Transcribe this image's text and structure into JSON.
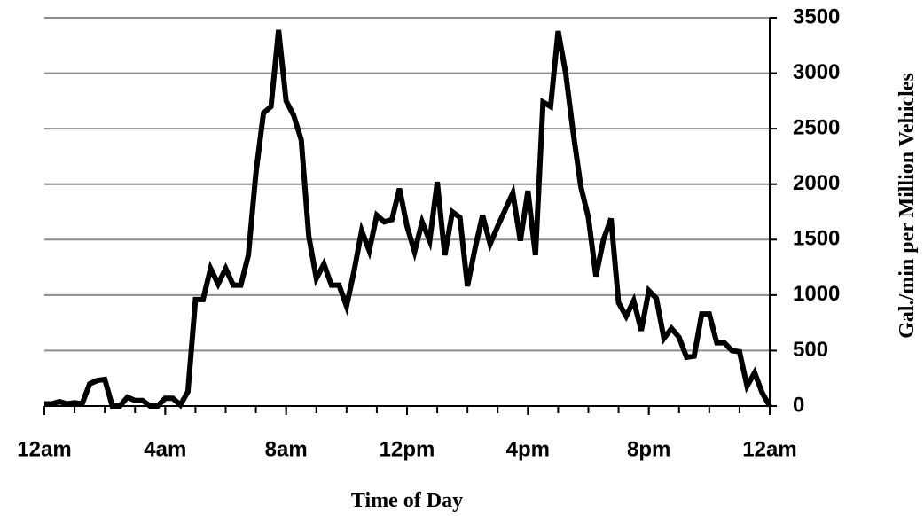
{
  "chart_data": {
    "type": "line",
    "x_label": "Time of Day",
    "y_label": "Gal./min per Million Vehicles",
    "x": [
      0,
      0.25,
      0.5,
      0.75,
      1,
      1.25,
      1.5,
      1.75,
      2,
      2.25,
      2.5,
      2.75,
      3,
      3.25,
      3.5,
      3.75,
      4,
      4.25,
      4.5,
      4.75,
      5,
      5.25,
      5.5,
      5.75,
      6,
      6.25,
      6.5,
      6.75,
      7,
      7.25,
      7.5,
      7.75,
      8,
      8.25,
      8.5,
      8.75,
      9,
      9.25,
      9.5,
      9.75,
      10,
      10.25,
      10.5,
      10.75,
      11,
      11.25,
      11.5,
      11.75,
      12,
      12.25,
      12.5,
      12.75,
      13,
      13.25,
      13.5,
      13.75,
      14,
      14.25,
      14.5,
      14.75,
      15,
      15.25,
      15.5,
      15.75,
      16,
      16.25,
      16.5,
      16.75,
      17,
      17.25,
      17.5,
      17.75,
      18,
      18.25,
      18.5,
      18.75,
      19,
      19.25,
      19.5,
      19.75,
      20,
      20.25,
      20.5,
      20.75,
      21,
      21.25,
      21.5,
      21.75,
      22,
      22.25,
      22.5,
      22.75,
      23,
      23.25,
      23.5,
      23.75,
      24
    ],
    "series": [
      {
        "color": "#000000",
        "values": [
          20,
          20,
          40,
          20,
          30,
          20,
          200,
          230,
          240,
          0,
          0,
          80,
          50,
          50,
          0,
          0,
          70,
          70,
          10,
          130,
          960,
          960,
          1240,
          1100,
          1240,
          1090,
          1090,
          1360,
          2100,
          2640,
          2700,
          3390,
          2750,
          2620,
          2400,
          1530,
          1150,
          1280,
          1090,
          1090,
          900,
          1220,
          1580,
          1400,
          1720,
          1660,
          1680,
          1960,
          1620,
          1390,
          1660,
          1490,
          2020,
          1360,
          1750,
          1700,
          1080,
          1420,
          1720,
          1460,
          1620,
          1770,
          1920,
          1490,
          1940,
          1360,
          2740,
          2700,
          3380,
          3000,
          2460,
          1980,
          1700,
          1170,
          1500,
          1690,
          930,
          810,
          950,
          680,
          1040,
          970,
          610,
          700,
          620,
          440,
          450,
          830,
          830,
          570,
          570,
          500,
          490,
          180,
          300,
          120,
          0
        ]
      }
    ],
    "xlim": [
      0,
      24
    ],
    "xticks": [
      {
        "value": 0,
        "label": "12am"
      },
      {
        "value": 4,
        "label": "4am"
      },
      {
        "value": 8,
        "label": "8am"
      },
      {
        "value": 12,
        "label": "12pm"
      },
      {
        "value": 16,
        "label": "4pm"
      },
      {
        "value": 20,
        "label": "8pm"
      },
      {
        "value": 24,
        "label": "12am"
      }
    ],
    "ylim": [
      0,
      3500
    ],
    "yticks": [
      0,
      500,
      1000,
      1500,
      2000,
      2500,
      3000,
      3500
    ],
    "grid": true,
    "y_axis_side": "right"
  }
}
